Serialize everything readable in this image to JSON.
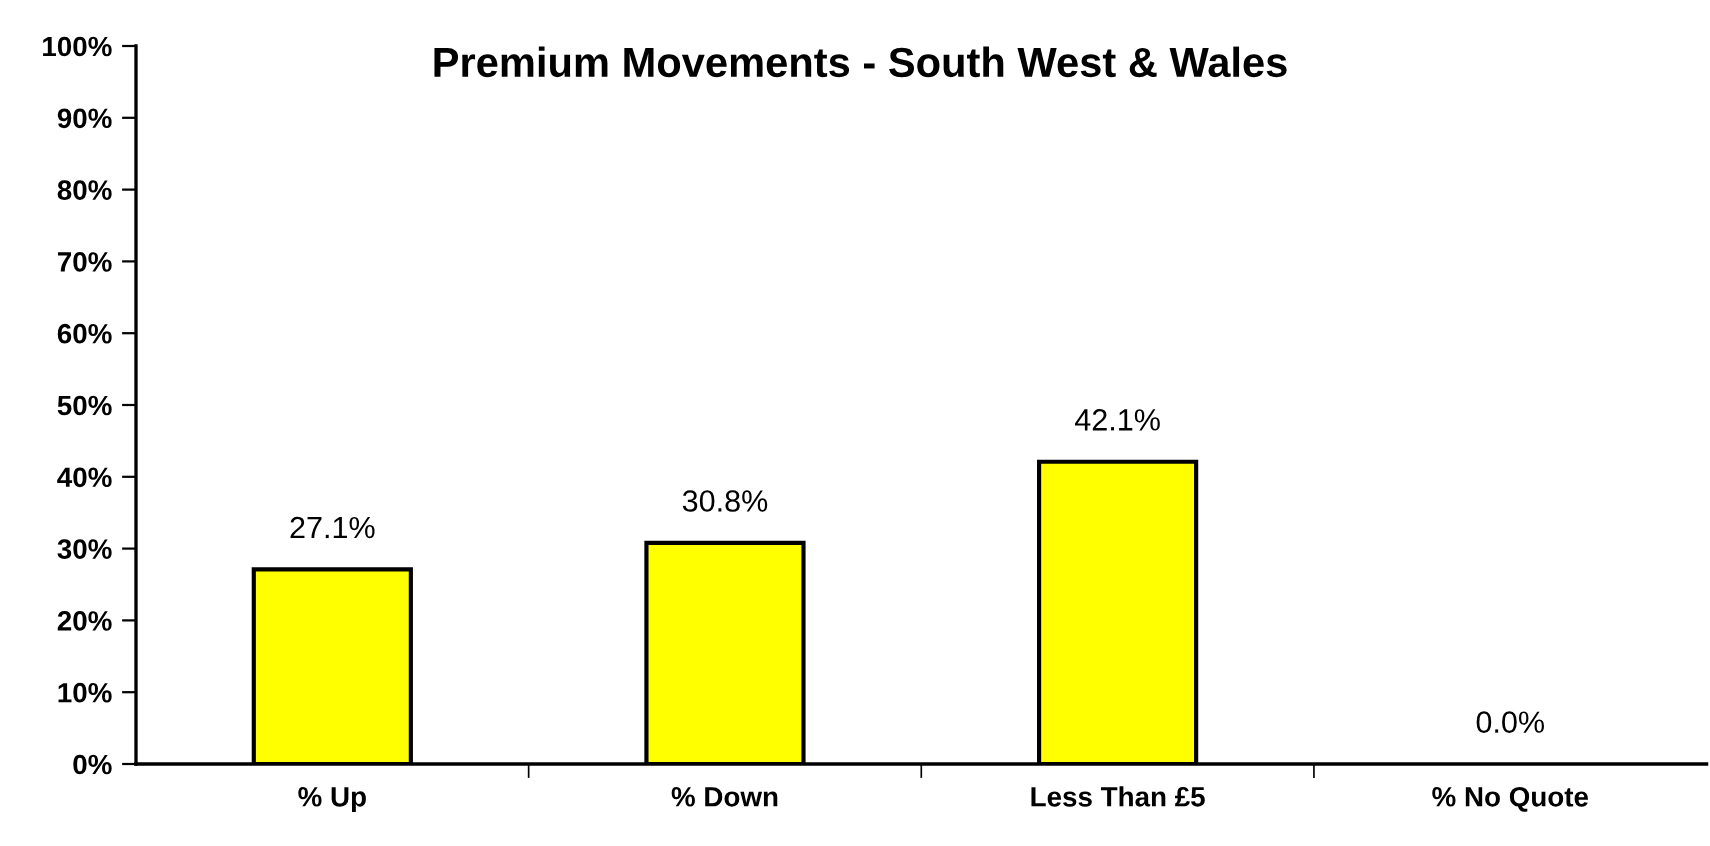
{
  "chart_data": {
    "type": "bar",
    "title": "Premium Movements - South West & Wales",
    "categories": [
      "% Up",
      "% Down",
      "Less Than £5",
      "% No Quote"
    ],
    "values": [
      27.1,
      30.8,
      42.1,
      0.0
    ],
    "value_labels": [
      "27.1%",
      "30.8%",
      "42.1%",
      "0.0%"
    ],
    "color": "#ffff00",
    "ylim": [
      0,
      100
    ],
    "yticks": [
      {
        "value": 0,
        "label": "0%"
      },
      {
        "value": 10,
        "label": "10%"
      },
      {
        "value": 20,
        "label": "20%"
      },
      {
        "value": 30,
        "label": "30%"
      },
      {
        "value": 40,
        "label": "40%"
      },
      {
        "value": 50,
        "label": "50%"
      },
      {
        "value": 60,
        "label": "60%"
      },
      {
        "value": 70,
        "label": "70%"
      },
      {
        "value": 80,
        "label": "80%"
      },
      {
        "value": 90,
        "label": "90%"
      },
      {
        "value": 100,
        "label": "100%"
      }
    ],
    "grid": false,
    "legend": false
  }
}
